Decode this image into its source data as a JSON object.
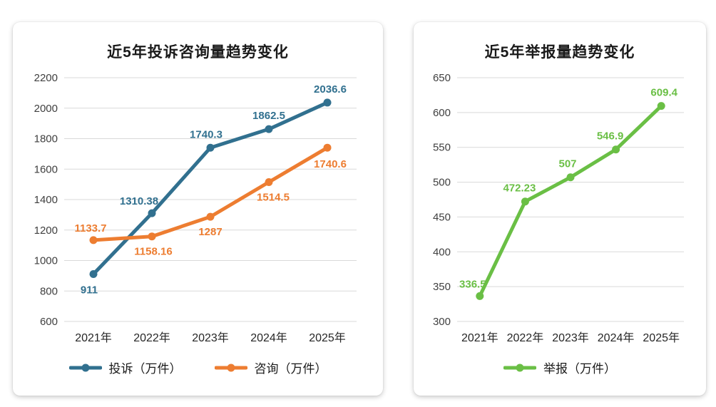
{
  "chart_data": [
    {
      "type": "line",
      "title": "近5年投诉咨询量趋势变化",
      "xlabel": "",
      "ylabel": "",
      "categories": [
        "2021年",
        "2022年",
        "2023年",
        "2024年",
        "2025年"
      ],
      "series": [
        {
          "name": "投诉（万件）",
          "color": "#31708f",
          "values": [
            911,
            1310.38,
            1740.3,
            1862.5,
            2036.6
          ],
          "labels": [
            "911",
            "1310.38",
            "1740.3",
            "1862.5",
            "2036.6"
          ],
          "label_offsets": [
            [
              -6,
              27
            ],
            [
              -18,
              -12
            ],
            [
              -6,
              -14
            ],
            [
              0,
              -14
            ],
            [
              4,
              -14
            ]
          ]
        },
        {
          "name": "咨询（万件）",
          "color": "#ed7d31",
          "values": [
            1133.7,
            1158.16,
            1287,
            1514.5,
            1740.6
          ],
          "labels": [
            "1133.7",
            "1158.16",
            "1287",
            "1514.5",
            "1740.6"
          ],
          "label_offsets": [
            [
              -4,
              -12
            ],
            [
              2,
              26
            ],
            [
              0,
              26
            ],
            [
              6,
              26
            ],
            [
              4,
              28
            ]
          ]
        }
      ],
      "ylim": [
        600,
        2200
      ],
      "ytick_step": 200,
      "grid": true,
      "legend_position": "bottom"
    },
    {
      "type": "line",
      "title": "近5年举报量趋势变化",
      "xlabel": "",
      "ylabel": "",
      "categories": [
        "2021年",
        "2022年",
        "2023年",
        "2024年",
        "2025年"
      ],
      "series": [
        {
          "name": "举报（万件）",
          "color": "#6abf45",
          "values": [
            336.5,
            472.23,
            507,
            546.9,
            609.4
          ],
          "labels": [
            "336.5",
            "472.23",
            "507",
            "546.9",
            "609.4"
          ],
          "label_offsets": [
            [
              -10,
              -12
            ],
            [
              -8,
              -14
            ],
            [
              -4,
              -14
            ],
            [
              -8,
              -14
            ],
            [
              4,
              -14
            ]
          ]
        }
      ],
      "ylim": [
        300,
        650
      ],
      "ytick_step": 50,
      "grid": true,
      "legend_position": "bottom"
    }
  ]
}
